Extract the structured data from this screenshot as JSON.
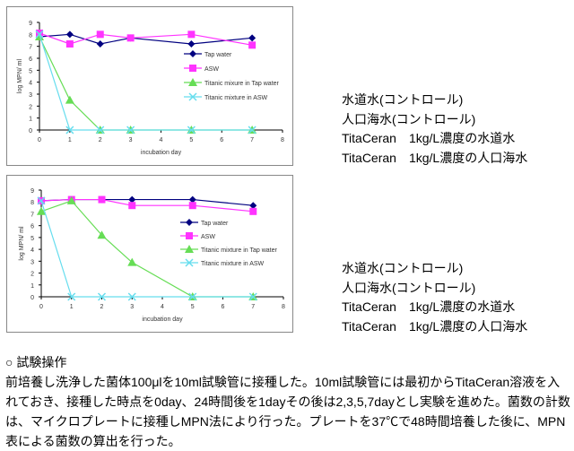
{
  "chart_data": [
    {
      "type": "line",
      "xlabel": "incubation day",
      "ylabel": "log MPN/ ml",
      "xlim": [
        0,
        8
      ],
      "ylim": [
        0,
        9
      ],
      "x": [
        0,
        1,
        2,
        3,
        5,
        7
      ],
      "series": [
        {
          "name": "Tap water",
          "color": "#000080",
          "marker": "diamond",
          "values": [
            7.8,
            8.0,
            7.2,
            7.7,
            7.2,
            7.7
          ]
        },
        {
          "name": "ASW",
          "color": "#ff33ff",
          "marker": "square",
          "values": [
            8.1,
            7.2,
            8.0,
            7.7,
            8.0,
            7.1
          ]
        },
        {
          "name": "Titanic mixure in Tap water",
          "color": "#66dd55",
          "marker": "triangle",
          "values": [
            7.8,
            2.5,
            0,
            0,
            0,
            0
          ]
        },
        {
          "name": "Titanic mixture in ASW",
          "color": "#66ddee",
          "marker": "x",
          "values": [
            8.0,
            0,
            0,
            0,
            0,
            0
          ]
        }
      ]
    },
    {
      "type": "line",
      "xlabel": "incubation day",
      "ylabel": "log MPN/ ml",
      "xlim": [
        0,
        8
      ],
      "ylim": [
        0,
        9
      ],
      "x": [
        0,
        1,
        2,
        3,
        5,
        7
      ],
      "series": [
        {
          "name": "Tap water",
          "color": "#000080",
          "marker": "diamond",
          "values": [
            8.1,
            8.2,
            8.2,
            8.2,
            8.2,
            7.7
          ]
        },
        {
          "name": "ASW",
          "color": "#ff33ff",
          "marker": "square",
          "values": [
            8.1,
            8.2,
            8.2,
            7.7,
            7.7,
            7.2
          ]
        },
        {
          "name": "Titanic mixture in Tap water",
          "color": "#66dd55",
          "marker": "triangle",
          "values": [
            7.2,
            8.1,
            5.2,
            2.9,
            0,
            0
          ]
        },
        {
          "name": "Titanic mixture in ASW",
          "color": "#66ddee",
          "marker": "x",
          "values": [
            8.1,
            0,
            0,
            0,
            0,
            0
          ]
        }
      ]
    }
  ],
  "legend1": [
    "水道水(コントロール)",
    "人口海水(コントロール)",
    "TitaCeran　1kg/L濃度の水道水",
    "TitaCeran　1kg/L濃度の人口海水"
  ],
  "legend2": [
    "水道水(コントロール)",
    "人口海水(コントロール)",
    "TitaCeran　1kg/L濃度の水道水",
    "TitaCeran　1kg/L濃度の人口海水"
  ],
  "description": {
    "heading": "○ 試験操作",
    "body": "前培養し洗浄した菌体100μlを10ml試験管に接種した。10ml試験管には最初からTitaCeran溶液を入れておき、接種した時点を0day、24時間後を1dayその後は2,3,5,7dayとし実験を進めた。菌数の計数は、マイクロプレートに接種しMPN法により行った。プレートを37℃で48時間培養した後に、MPN表による菌数の算出を行った。"
  }
}
